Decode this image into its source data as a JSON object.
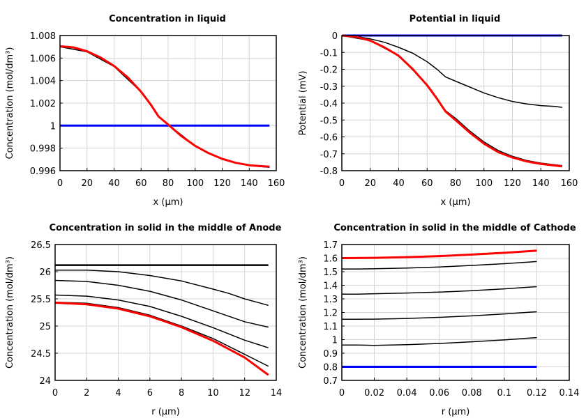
{
  "chart_data": [
    {
      "type": "line",
      "title": "Concentration in liquid",
      "xlabel": "x (µm)",
      "ylabel": "Concentration (mol/dm³)",
      "xlim": [
        0,
        160
      ],
      "ylim": [
        0.996,
        1.008
      ],
      "xticks": [
        0,
        20,
        40,
        60,
        80,
        100,
        120,
        140,
        160
      ],
      "xtick_labels": [
        "0",
        "20",
        "40",
        "60",
        "80",
        "100",
        "120",
        "140",
        "160"
      ],
      "yticks": [
        0.996,
        0.998,
        1,
        1.002,
        1.004,
        1.006,
        1.008
      ],
      "ytick_labels": [
        "0.996",
        "0.998",
        "1",
        "1.002",
        "1.004",
        "1.006",
        "1.008"
      ],
      "grid": true,
      "series": [
        {
          "color": "#000000",
          "width": 2,
          "x": [
            0,
            73
          ],
          "y": [
            1.0,
            1.0
          ]
        },
        {
          "color": "#000000",
          "width": 1.5,
          "x": [
            0,
            20,
            40,
            60,
            73,
            80,
            100,
            120,
            140,
            155
          ],
          "y": [
            1.007,
            1.00655,
            1.00525,
            1.003,
            1.0008,
            1.0001,
            0.9982,
            0.997,
            0.99645,
            0.9963
          ]
        },
        {
          "color": "#0000ff",
          "width": 3,
          "x": [
            0,
            155
          ],
          "y": [
            1.0,
            1.0
          ]
        },
        {
          "color": "#ff0000",
          "width": 3,
          "x": [
            0,
            10,
            20,
            30,
            40,
            50,
            60,
            67,
            73,
            80,
            90,
            100,
            110,
            120,
            130,
            140,
            155
          ],
          "y": [
            1.00705,
            1.00695,
            1.0066,
            1.00605,
            1.0053,
            1.0043,
            1.003,
            1.0019,
            1.0008,
            1.0001,
            0.99905,
            0.9982,
            0.99755,
            0.99705,
            0.9967,
            0.99648,
            0.99635
          ]
        }
      ]
    },
    {
      "type": "line",
      "title": "Potential in liquid",
      "xlabel": "x (µm)",
      "ylabel": "Potential (mV)",
      "xlim": [
        0,
        160
      ],
      "ylim": [
        -0.8,
        0
      ],
      "xticks": [
        0,
        20,
        40,
        60,
        80,
        100,
        120,
        140,
        160
      ],
      "xtick_labels": [
        "0",
        "20",
        "40",
        "60",
        "80",
        "100",
        "120",
        "140",
        "160"
      ],
      "yticks": [
        -0.8,
        -0.7,
        -0.6,
        -0.5,
        -0.4,
        -0.3,
        -0.2,
        -0.1,
        0
      ],
      "ytick_labels": [
        "-0.8",
        "-0.7",
        "-0.6",
        "-0.5",
        "-0.4",
        "-0.3",
        "-0.2",
        "-0.1",
        "0"
      ],
      "grid": true,
      "series": [
        {
          "color": "#000000",
          "width": 1.5,
          "x": [
            0,
            10,
            20,
            30,
            40,
            50,
            60,
            67,
            73,
            80,
            90,
            100,
            110,
            120,
            130,
            140,
            150,
            155
          ],
          "y": [
            0,
            -0.005,
            -0.02,
            -0.04,
            -0.07,
            -0.105,
            -0.155,
            -0.2,
            -0.245,
            -0.27,
            -0.305,
            -0.34,
            -0.368,
            -0.39,
            -0.405,
            -0.415,
            -0.42,
            -0.425
          ]
        },
        {
          "color": "#000000",
          "width": 1.5,
          "x": [
            0,
            20,
            40,
            60,
            67,
            73,
            80,
            90,
            100,
            110,
            120,
            130,
            140,
            155
          ],
          "y": [
            0,
            -0.03,
            -0.12,
            -0.29,
            -0.37,
            -0.445,
            -0.49,
            -0.565,
            -0.63,
            -0.68,
            -0.715,
            -0.74,
            -0.755,
            -0.77
          ]
        },
        {
          "color": "#0000ff",
          "width": 3,
          "x": [
            0,
            155
          ],
          "y": [
            0,
            0
          ]
        },
        {
          "color": "#ff0000",
          "width": 3,
          "x": [
            0,
            10,
            20,
            30,
            40,
            50,
            60,
            67,
            73,
            80,
            90,
            100,
            110,
            120,
            130,
            140,
            155
          ],
          "y": [
            0,
            -0.008,
            -0.03,
            -0.07,
            -0.12,
            -0.2,
            -0.295,
            -0.375,
            -0.45,
            -0.5,
            -0.575,
            -0.64,
            -0.69,
            -0.722,
            -0.745,
            -0.76,
            -0.775
          ]
        }
      ]
    },
    {
      "type": "line",
      "title": "Concentration in solid in the middle of Anode",
      "xlabel": "r (µm)",
      "ylabel": "Concentration (mol/dm³)",
      "xlim": [
        0,
        14
      ],
      "ylim": [
        24,
        26.5
      ],
      "xticks": [
        0,
        2,
        4,
        6,
        8,
        10,
        12,
        14
      ],
      "xtick_labels": [
        "0",
        "2",
        "4",
        "6",
        "8",
        "10",
        "12",
        "14"
      ],
      "yticks": [
        24,
        24.5,
        25,
        25.5,
        26,
        26.5
      ],
      "ytick_labels": [
        "24",
        "24.5",
        "25",
        "25.5",
        "26",
        "26.5"
      ],
      "grid": true,
      "series": [
        {
          "color": "#000000",
          "width": 2.5,
          "x": [
            0,
            13.5
          ],
          "y": [
            26.12,
            26.12
          ]
        },
        {
          "color": "#000000",
          "width": 1.5,
          "x": [
            0,
            2,
            4,
            6,
            8,
            10,
            11,
            12,
            13,
            13.5
          ],
          "y": [
            26.03,
            26.03,
            26.0,
            25.93,
            25.83,
            25.68,
            25.6,
            25.5,
            25.42,
            25.38
          ]
        },
        {
          "color": "#000000",
          "width": 1.5,
          "x": [
            0,
            2,
            4,
            6,
            8,
            10,
            12,
            13.5
          ],
          "y": [
            25.84,
            25.82,
            25.75,
            25.64,
            25.48,
            25.28,
            25.08,
            24.98
          ]
        },
        {
          "color": "#000000",
          "width": 1.5,
          "x": [
            0,
            2,
            4,
            6,
            8,
            10,
            12,
            13.5
          ],
          "y": [
            25.57,
            25.55,
            25.48,
            25.36,
            25.18,
            24.97,
            24.74,
            24.6
          ]
        },
        {
          "color": "#000000",
          "width": 1.5,
          "x": [
            0,
            2,
            4,
            6,
            8,
            10,
            12,
            13.5
          ],
          "y": [
            25.44,
            25.42,
            25.34,
            25.2,
            25.0,
            24.77,
            24.48,
            24.26
          ]
        },
        {
          "color": "#ff0000",
          "width": 3,
          "x": [
            0,
            2,
            4,
            6,
            8,
            10,
            12,
            13.5
          ],
          "y": [
            25.43,
            25.4,
            25.32,
            25.18,
            24.98,
            24.73,
            24.42,
            24.1
          ]
        }
      ]
    },
    {
      "type": "line",
      "title": "Concentration in solid in the middle of Cathode",
      "xlabel": "r (µm)",
      "ylabel": "Concentration (mol/dm³)",
      "xlim": [
        0,
        0.14
      ],
      "ylim": [
        0.7,
        1.7
      ],
      "xticks": [
        0,
        0.02,
        0.04,
        0.06,
        0.08,
        0.1,
        0.12,
        0.14
      ],
      "xtick_labels": [
        "0",
        "0.02",
        "0.04",
        "0.06",
        "0.08",
        "0.1",
        "0.12",
        "0.14"
      ],
      "yticks": [
        0.7,
        0.8,
        0.9,
        1,
        1.1,
        1.2,
        1.3,
        1.4,
        1.5,
        1.6,
        1.7
      ],
      "ytick_labels": [
        "0.7",
        "0.8",
        "0.9",
        "1",
        "1.1",
        "1.2",
        "1.3",
        "1.4",
        "1.5",
        "1.6",
        "1.7"
      ],
      "grid": true,
      "series": [
        {
          "color": "#0000ff",
          "width": 3,
          "x": [
            0,
            0.12
          ],
          "y": [
            0.8,
            0.8
          ]
        },
        {
          "color": "#000000",
          "width": 1.5,
          "x": [
            0,
            0.01,
            0.02,
            0.04,
            0.06,
            0.08,
            0.1,
            0.12
          ],
          "y": [
            0.96,
            0.96,
            0.958,
            0.963,
            0.972,
            0.984,
            0.998,
            1.015
          ]
        },
        {
          "color": "#000000",
          "width": 1.5,
          "x": [
            0,
            0.02,
            0.04,
            0.06,
            0.08,
            0.1,
            0.12
          ],
          "y": [
            1.15,
            1.151,
            1.156,
            1.164,
            1.175,
            1.189,
            1.205
          ]
        },
        {
          "color": "#000000",
          "width": 1.5,
          "x": [
            0,
            0.01,
            0.02,
            0.04,
            0.06,
            0.08,
            0.1,
            0.12
          ],
          "y": [
            1.335,
            1.335,
            1.338,
            1.343,
            1.35,
            1.36,
            1.374,
            1.39
          ]
        },
        {
          "color": "#000000",
          "width": 1.5,
          "x": [
            0,
            0.01,
            0.02,
            0.04,
            0.06,
            0.08,
            0.1,
            0.12
          ],
          "y": [
            1.52,
            1.52,
            1.522,
            1.527,
            1.535,
            1.546,
            1.559,
            1.575
          ]
        },
        {
          "color": "#ff0000",
          "width": 3,
          "x": [
            0,
            0.02,
            0.04,
            0.06,
            0.08,
            0.1,
            0.12
          ],
          "y": [
            1.6,
            1.602,
            1.607,
            1.615,
            1.626,
            1.639,
            1.655
          ]
        }
      ]
    }
  ]
}
